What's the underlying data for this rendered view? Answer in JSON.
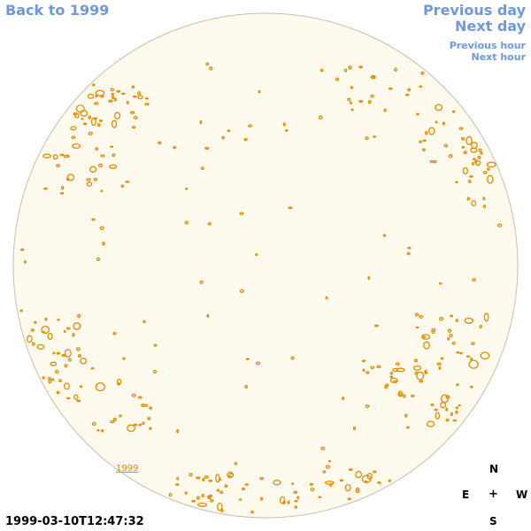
{
  "nav": {
    "back_label": "Back to 1999",
    "previous_day": "Previous day",
    "next_day": "Next day",
    "previous_hour": "Previous hour",
    "next_hour": "Next hour"
  },
  "image": {
    "timestamp": "1999-03-10T12:47:32",
    "year_annotation": "1999"
  },
  "compass": {
    "north": "N",
    "east": "E",
    "center": "+",
    "west": "W",
    "south": "S"
  },
  "colors": {
    "nav_link": "#6f98dd",
    "disk_fill": "#fefaee",
    "disk_border": "#c8bfae",
    "contour": "#e88a00"
  }
}
